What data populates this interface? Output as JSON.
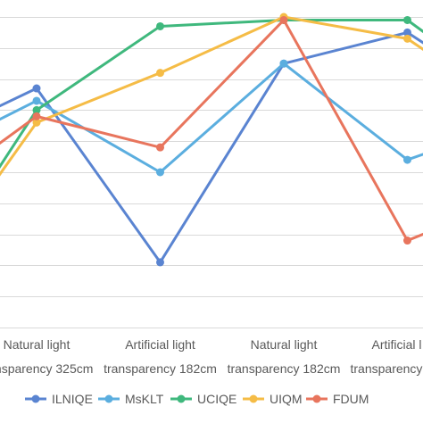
{
  "chart_data": {
    "type": "line",
    "categories": [
      [
        "",
        ""
      ],
      [
        "Natural light",
        "transparency 325cm"
      ],
      [
        "Artificial light",
        "transparency 182cm"
      ],
      [
        "Natural light",
        "transparency 182cm"
      ],
      [
        "Artificial l",
        "transparency"
      ],
      [
        "",
        ""
      ]
    ],
    "series": [
      {
        "name": "ILNIQE",
        "color": "#5A84D1",
        "values": [
          5.8,
          7.7,
          2.1,
          8.5,
          9.5,
          6.9
        ]
      },
      {
        "name": "MsKLT",
        "color": "#5BAEDF",
        "values": [
          5.3,
          7.3,
          5.0,
          8.5,
          5.4,
          6.8
        ]
      },
      {
        "name": "UCIQE",
        "color": "#3FB87D",
        "values": [
          0.9,
          7.0,
          9.7,
          9.9,
          9.9,
          7.0
        ]
      },
      {
        "name": "UIQM",
        "color": "#F5BC46",
        "values": [
          1.0,
          6.6,
          8.2,
          10.0,
          9.3,
          6.6
        ]
      },
      {
        "name": "FDUM",
        "color": "#E8755D",
        "values": [
          3.9,
          6.8,
          5.8,
          9.9,
          2.8,
          4.4
        ]
      }
    ],
    "ylim": [
      0,
      10
    ],
    "grid": true,
    "markers": "circle",
    "legend": "bottom",
    "grid_color": "#D9D9D9",
    "label_color": "#595959"
  }
}
